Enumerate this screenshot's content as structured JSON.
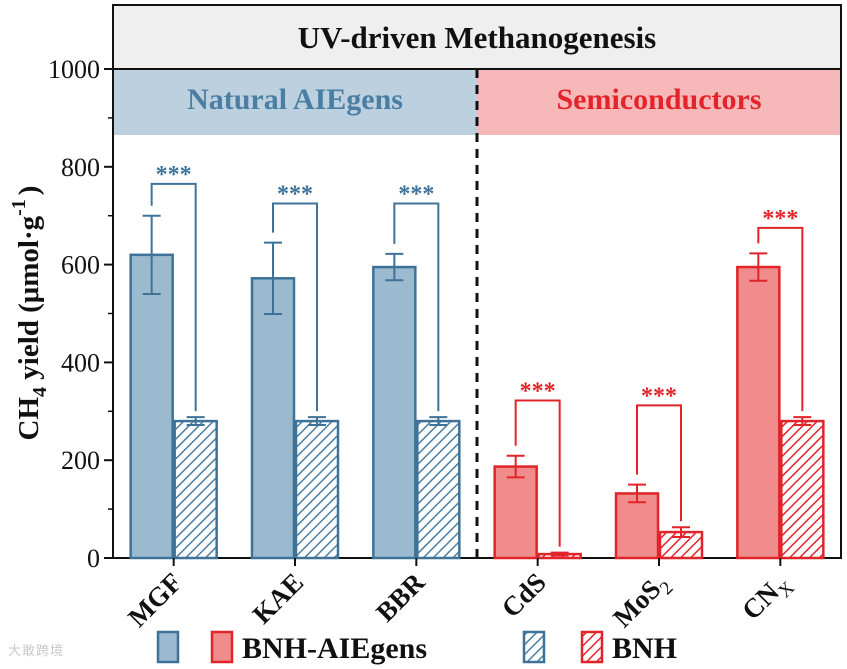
{
  "chart_data": {
    "type": "bar",
    "title": "UV-driven Methanogenesis",
    "ylabel": {
      "main": "CH",
      "sub": "4",
      "rest": " yield (μmol·g",
      "sup": "-1",
      "close": ")"
    },
    "ylim": [
      0,
      1000
    ],
    "yticks": [
      "0",
      "200",
      "400",
      "600",
      "800",
      "1000"
    ],
    "groups": [
      {
        "label": "Natural AIEgens",
        "color": "#4a7fa3",
        "bg": "#bcd0df"
      },
      {
        "label": "Semiconductors",
        "color": "#e3242b",
        "bg": "#f6b8b9"
      }
    ],
    "categories": [
      {
        "label": "MGF",
        "sub": "",
        "group": 0
      },
      {
        "label": "KAE",
        "sub": "",
        "group": 0
      },
      {
        "label": "BBR",
        "sub": "",
        "group": 0
      },
      {
        "label": "CdS",
        "sub": "",
        "group": 1
      },
      {
        "label": "MoS",
        "sub": "2",
        "group": 1
      },
      {
        "label": "CN",
        "sub": "X",
        "group": 1
      }
    ],
    "series": [
      {
        "name": "BNH-AIEgens",
        "pattern": "solid",
        "values": [
          620,
          572,
          595,
          187,
          132,
          595
        ],
        "errors": [
          80,
          73,
          27,
          22,
          18,
          28
        ]
      },
      {
        "name": "BNH",
        "pattern": "hatched",
        "values": [
          280,
          280,
          280,
          8,
          53,
          280
        ],
        "errors": [
          8,
          8,
          8,
          3,
          10,
          8
        ]
      }
    ],
    "annotations": [
      "***",
      "***",
      "***",
      "***",
      "***",
      "***"
    ],
    "significance_brackets": [
      {
        "category": 0,
        "top": 765
      },
      {
        "category": 1,
        "top": 725
      },
      {
        "category": 2,
        "top": 725
      },
      {
        "category": 3,
        "top": 322
      },
      {
        "category": 4,
        "top": 312
      },
      {
        "category": 5,
        "top": 675
      }
    ],
    "colors": {
      "blue_fill": "#9bb9cf",
      "blue_stroke": "#3f7299",
      "red_fill": "#f08d8c",
      "red_stroke": "#e0242a"
    },
    "legend": {
      "placement": "bottom",
      "entries": [
        {
          "label": "",
          "group": 0,
          "pattern": "solid"
        },
        {
          "label": "BNH-AIEgens",
          "group": 1,
          "pattern": "solid"
        },
        {
          "label": "",
          "group": 0,
          "pattern": "hatched"
        },
        {
          "label": "BNH",
          "group": 1,
          "pattern": "hatched"
        }
      ]
    }
  },
  "watermark": "大敢跨境"
}
